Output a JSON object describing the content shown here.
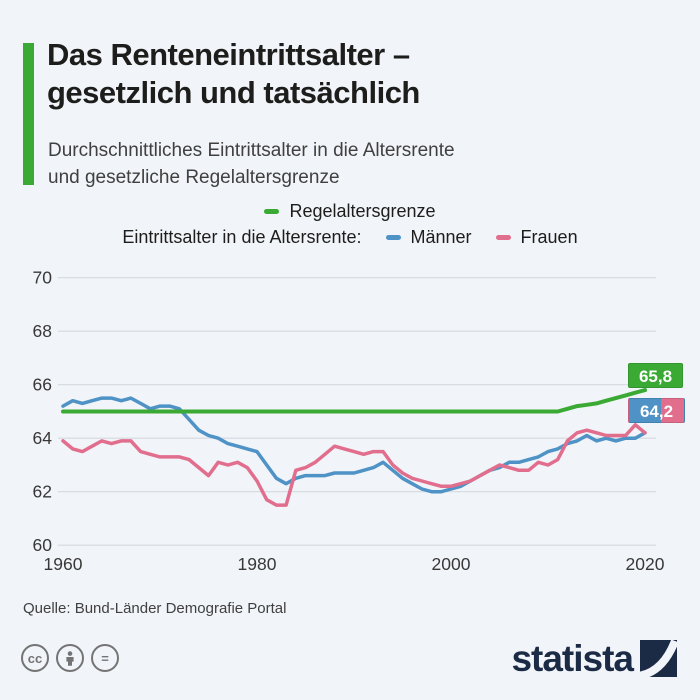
{
  "header": {
    "title_line1": "Das Renteneintrittsalter –",
    "title_line2": "gesetzlich und tatsächlich",
    "subtitle_line1": "Durchschnittliches Eintrittsalter in die Altersrente",
    "subtitle_line2": "und gesetzliche Regelaltersgrenze"
  },
  "legend": {
    "regelaltersgrenze_label": "Regelaltersgrenze",
    "eintrittsalter_label": "Eintrittsalter in die Altersrente:",
    "maenner_label": "Männer",
    "frauen_label": "Frauen"
  },
  "colors": {
    "green": "#3aaa35",
    "blue": "#4e92c6",
    "pink": "#e26e8e",
    "background": "#f1f4f8",
    "grid": "#d5dae0",
    "text_dark": "#1d1d1b",
    "text_grey": "#404040",
    "logo_navy": "#1c2b45"
  },
  "chart_data": {
    "type": "line",
    "title": "Das Renteneintrittsalter – gesetzlich und tatsächlich",
    "xlabel": "",
    "ylabel": "",
    "xlim": [
      1960,
      2020
    ],
    "ylim": [
      60,
      70
    ],
    "xticks": [
      1960,
      1980,
      2000,
      2020
    ],
    "yticks": [
      60,
      62,
      64,
      66,
      68,
      70
    ],
    "grid": "horizontal",
    "legend_position": "top",
    "x": [
      1960,
      1961,
      1962,
      1963,
      1964,
      1965,
      1966,
      1967,
      1968,
      1969,
      1970,
      1971,
      1972,
      1973,
      1974,
      1975,
      1976,
      1977,
      1978,
      1979,
      1980,
      1981,
      1982,
      1983,
      1984,
      1985,
      1986,
      1987,
      1988,
      1989,
      1990,
      1991,
      1992,
      1993,
      1994,
      1995,
      1996,
      1997,
      1998,
      1999,
      2000,
      2001,
      2002,
      2003,
      2004,
      2005,
      2006,
      2007,
      2008,
      2009,
      2010,
      2011,
      2012,
      2013,
      2014,
      2015,
      2016,
      2017,
      2018,
      2019,
      2020
    ],
    "series": [
      {
        "name": "Regelaltersgrenze",
        "color_key": "green",
        "values": [
          65,
          65,
          65,
          65,
          65,
          65,
          65,
          65,
          65,
          65,
          65,
          65,
          65,
          65,
          65,
          65,
          65,
          65,
          65,
          65,
          65,
          65,
          65,
          65,
          65,
          65,
          65,
          65,
          65,
          65,
          65,
          65,
          65,
          65,
          65,
          65,
          65,
          65,
          65,
          65,
          65,
          65,
          65,
          65,
          65,
          65,
          65,
          65,
          65,
          65,
          65,
          65,
          65.1,
          65.2,
          65.25,
          65.3,
          65.4,
          65.5,
          65.6,
          65.7,
          65.8
        ]
      },
      {
        "name": "Männer",
        "color_key": "blue",
        "values": [
          65.2,
          65.4,
          65.3,
          65.4,
          65.5,
          65.5,
          65.4,
          65.5,
          65.3,
          65.1,
          65.2,
          65.2,
          65.1,
          64.7,
          64.3,
          64.1,
          64.0,
          63.8,
          63.7,
          63.6,
          63.5,
          63.0,
          62.5,
          62.3,
          62.5,
          62.6,
          62.6,
          62.6,
          62.7,
          62.7,
          62.7,
          62.8,
          62.9,
          63.1,
          62.8,
          62.5,
          62.3,
          62.1,
          62.0,
          62.0,
          62.1,
          62.2,
          62.4,
          62.6,
          62.8,
          62.9,
          63.1,
          63.1,
          63.2,
          63.3,
          63.5,
          63.6,
          63.8,
          63.9,
          64.1,
          63.9,
          64.0,
          63.9,
          64.0,
          64.0,
          64.2
        ]
      },
      {
        "name": "Frauen",
        "color_key": "pink",
        "values": [
          63.9,
          63.6,
          63.5,
          63.7,
          63.9,
          63.8,
          63.9,
          63.9,
          63.5,
          63.4,
          63.3,
          63.3,
          63.3,
          63.2,
          62.9,
          62.6,
          63.1,
          63.0,
          63.1,
          62.9,
          62.4,
          61.7,
          61.5,
          61.5,
          62.8,
          62.9,
          63.1,
          63.4,
          63.7,
          63.6,
          63.5,
          63.4,
          63.5,
          63.5,
          63.0,
          62.7,
          62.5,
          62.4,
          62.3,
          62.2,
          62.2,
          62.3,
          62.4,
          62.6,
          62.8,
          63.0,
          62.9,
          62.8,
          62.8,
          63.1,
          63.0,
          63.2,
          63.9,
          64.2,
          64.3,
          64.2,
          64.1,
          64.1,
          64.1,
          64.5,
          64.2
        ]
      }
    ],
    "end_labels": [
      {
        "text": "65,8",
        "series": "Regelaltersgrenze"
      },
      {
        "text": "64,2",
        "series": "Männer / Frauen"
      }
    ]
  },
  "footer": {
    "source": "Quelle: Bund-Länder Demografie Portal",
    "logo_text": "statista"
  }
}
